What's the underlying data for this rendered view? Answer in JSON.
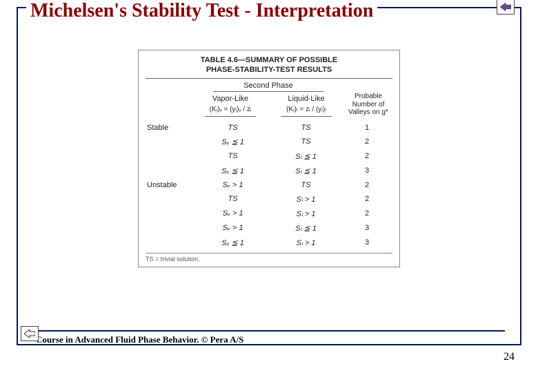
{
  "page": {
    "title": "Michelsen's Stability Test - Interpretation",
    "footer": "Course in Advanced Fluid Phase Behavior. © Pera A/S",
    "page_number": "24",
    "title_color": "#8b0000",
    "frame_color": "#001a5c",
    "background_color": "#ffffff"
  },
  "nav": {
    "back_icon": "arrow-left",
    "prev_icon": "arrow-left"
  },
  "table": {
    "type": "table",
    "caption_line1": "TABLE 4.6—SUMMARY OF POSSIBLE",
    "caption_line2": "PHASE-STABILITY-TEST RESULTS",
    "second_phase_label": "Second Phase",
    "col_vapor": "Vapor-Like",
    "col_liquid": "Liquid-Like",
    "col_valleys_l1": "Probable",
    "col_valleys_l2": "Number of",
    "col_valleys_l3": "Valleys on g*",
    "eq_vapor": "(Kᵢ)ᵥ = (yᵢ)ᵥ / zᵢ",
    "eq_liquid": "(Kᵢ)ₗ = zᵢ / (yᵢ)ₗ",
    "stub_stable": "Stable",
    "stub_unstable": "Unstable",
    "footnote": "TS = trivial solution.",
    "font_family": "Arial",
    "border_color": "#888888",
    "text_color": "#222222",
    "rows": [
      {
        "stub": "Stable",
        "vapor": "TS",
        "liquid": "TS",
        "valleys": "1"
      },
      {
        "stub": "",
        "vapor": "Sᵥ ≦ 1",
        "liquid": "TS",
        "valleys": "2"
      },
      {
        "stub": "",
        "vapor": "TS",
        "liquid": "Sₗ ≦ 1",
        "valleys": "2"
      },
      {
        "stub": "",
        "vapor": "Sᵥ ≦ 1",
        "liquid": "Sₗ ≦ 1",
        "valleys": "3"
      },
      {
        "stub": "Unstable",
        "vapor": "Sᵥ > 1",
        "liquid": "TS",
        "valleys": "2"
      },
      {
        "stub": "",
        "vapor": "TS",
        "liquid": "Sₗ > 1",
        "valleys": "2"
      },
      {
        "stub": "",
        "vapor": "Sᵥ > 1",
        "liquid": "Sₗ > 1",
        "valleys": "2"
      },
      {
        "stub": "",
        "vapor": "Sᵥ > 1",
        "liquid": "Sₗ ≦ 1",
        "valleys": "3"
      },
      {
        "stub": "",
        "vapor": "Sᵥ ≦ 1",
        "liquid": "Sₗ > 1",
        "valleys": "3"
      }
    ]
  }
}
